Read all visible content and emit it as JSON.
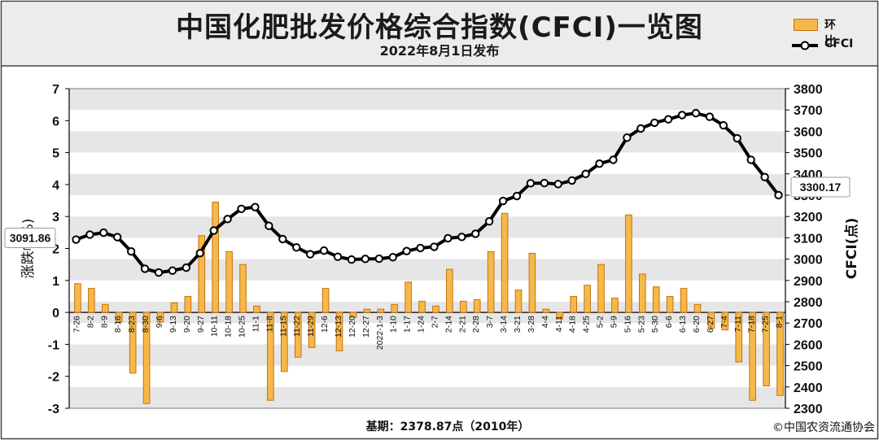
{
  "header": {
    "title": "中国化肥批发价格综合指数(CFCI)一览图",
    "subtitle": "2022年8月1日发布"
  },
  "legend": {
    "bar_label": "环比",
    "line_label": "CFCI"
  },
  "footer": {
    "base": "基期：2378.87点（2010年）",
    "copyright": "©中国农资流通协会"
  },
  "colors": {
    "bar_fill": "#f5b94a",
    "bar_stroke": "#c87010",
    "line": "#000000",
    "header_bg": "#ececec",
    "grid_band": "#e6e6e6"
  },
  "chart_data": {
    "type": "bar+line",
    "title": "中国化肥批发价格综合指数(CFCI)一览图",
    "subtitle": "2022年8月1日发布",
    "y_left_label": "涨跌幅(%)",
    "y_left_label_shown": "涨跌幅%)",
    "y_right_label": "CFCI(点)",
    "y_left_lim": [
      -3,
      7
    ],
    "y_right_lim": [
      2300,
      3800
    ],
    "y_left_ticks": [
      "-3",
      "-2",
      "-1",
      "0",
      "1",
      "2",
      "3",
      "4",
      "5",
      "6",
      "7"
    ],
    "y_right_ticks": [
      "2300",
      "2400",
      "2500",
      "2600",
      "2700",
      "2800",
      "2900",
      "3000",
      "3100",
      "3200",
      "3300",
      "3400",
      "3500",
      "3600",
      "3700",
      "3800"
    ],
    "categories": [
      "7-26",
      "8-2",
      "8-9",
      "8-16",
      "8-23",
      "8-30",
      "9-6",
      "9-13",
      "9-20",
      "9-27",
      "10-11",
      "10-18",
      "10-25",
      "11-1",
      "11-8",
      "11-15",
      "11-22",
      "11-29",
      "12-6",
      "12-13",
      "12-20",
      "12-27",
      "2022-1-3",
      "1-10",
      "1-17",
      "1-24",
      "2-7",
      "2-14",
      "2-21",
      "2-28",
      "3-7",
      "3-14",
      "3-21",
      "3-28",
      "4-4",
      "4-11",
      "4-18",
      "4-25",
      "5-2",
      "5-9",
      "5-16",
      "5-23",
      "5-30",
      "6-6",
      "6-13",
      "6-20",
      "6-27",
      "7-4",
      "7-11",
      "7-18",
      "7-25",
      "8-1"
    ],
    "series": [
      {
        "name": "环比",
        "kind": "bar",
        "axis": "left",
        "values": [
          0.9,
          0.75,
          0.25,
          -0.3,
          -1.9,
          -2.85,
          -0.3,
          0.3,
          0.5,
          2.4,
          3.45,
          1.9,
          1.5,
          0.2,
          -2.75,
          -1.85,
          -1.4,
          -1.1,
          0.75,
          -1.2,
          -0.15,
          0.1,
          0.1,
          0.25,
          0.95,
          0.35,
          0.2,
          1.35,
          0.35,
          0.4,
          1.9,
          3.1,
          0.7,
          1.85,
          0.1,
          -0.2,
          0.5,
          0.85,
          1.5,
          0.45,
          3.05,
          1.2,
          0.8,
          0.5,
          0.75,
          0.25,
          -0.5,
          -0.55,
          -1.55,
          -2.75,
          -2.3,
          -2.6
        ]
      },
      {
        "name": "CFCI",
        "kind": "line",
        "axis": "right",
        "values": [
          3091.86,
          3115,
          3124,
          3103,
          3036,
          2955,
          2937,
          2946,
          2960,
          3028,
          3134,
          3188,
          3236,
          3244,
          3156,
          3094,
          3055,
          3023,
          3040,
          3011,
          2998,
          3001,
          3002,
          3009,
          3038,
          3052,
          3058,
          3098,
          3104,
          3119,
          3177,
          3273,
          3296,
          3356,
          3357,
          3352,
          3369,
          3400,
          3448,
          3466,
          3570,
          3613,
          3640,
          3656,
          3676,
          3685,
          3668,
          3628,
          3567,
          3466,
          3385,
          3300.17
        ]
      }
    ],
    "annotations": [
      {
        "label": "3091.86",
        "anchor": "first-point"
      },
      {
        "label": "3300.17",
        "anchor": "last-point"
      }
    ],
    "grid": "horizontal bands",
    "legend_position": "top-right"
  }
}
